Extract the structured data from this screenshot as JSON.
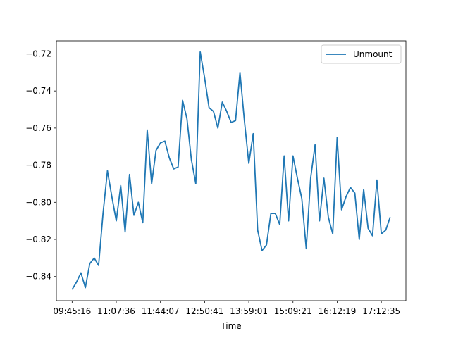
{
  "chart_data": {
    "type": "line",
    "title": "",
    "xlabel": "Time",
    "ylabel": "",
    "x_tick_labels": [
      "09:45:16",
      "11:07:36",
      "11:44:07",
      "12:50:41",
      "13:59:01",
      "15:09:21",
      "16:12:19",
      "17:12:35"
    ],
    "x_tick_indices": [
      0,
      10,
      20,
      30,
      40,
      50,
      60,
      70
    ],
    "ylim": [
      -0.853,
      -0.713
    ],
    "y_ticks": [
      -0.84,
      -0.82,
      -0.8,
      -0.78,
      -0.76,
      -0.74,
      -0.72
    ],
    "y_tick_labels": [
      "−0.84",
      "−0.82",
      "−0.80",
      "−0.78",
      "−0.76",
      "−0.74",
      "−0.72"
    ],
    "grid": false,
    "legend_position": "top-right",
    "series": [
      {
        "name": "Unmount",
        "color": "#1f77b4",
        "values": [
          -0.847,
          -0.843,
          -0.838,
          -0.846,
          -0.833,
          -0.83,
          -0.834,
          -0.806,
          -0.783,
          -0.797,
          -0.81,
          -0.791,
          -0.816,
          -0.785,
          -0.807,
          -0.8,
          -0.811,
          -0.761,
          -0.79,
          -0.772,
          -0.768,
          -0.767,
          -0.776,
          -0.782,
          -0.781,
          -0.745,
          -0.755,
          -0.777,
          -0.79,
          -0.719,
          -0.733,
          -0.749,
          -0.751,
          -0.76,
          -0.746,
          -0.751,
          -0.757,
          -0.756,
          -0.73,
          -0.756,
          -0.779,
          -0.763,
          -0.815,
          -0.826,
          -0.823,
          -0.806,
          -0.806,
          -0.812,
          -0.775,
          -0.81,
          -0.775,
          -0.787,
          -0.798,
          -0.825,
          -0.787,
          -0.769,
          -0.81,
          -0.787,
          -0.808,
          -0.817,
          -0.765,
          -0.804,
          -0.797,
          -0.792,
          -0.795,
          -0.82,
          -0.793,
          -0.814,
          -0.818,
          -0.788,
          -0.817,
          -0.815,
          -0.808
        ]
      }
    ]
  }
}
